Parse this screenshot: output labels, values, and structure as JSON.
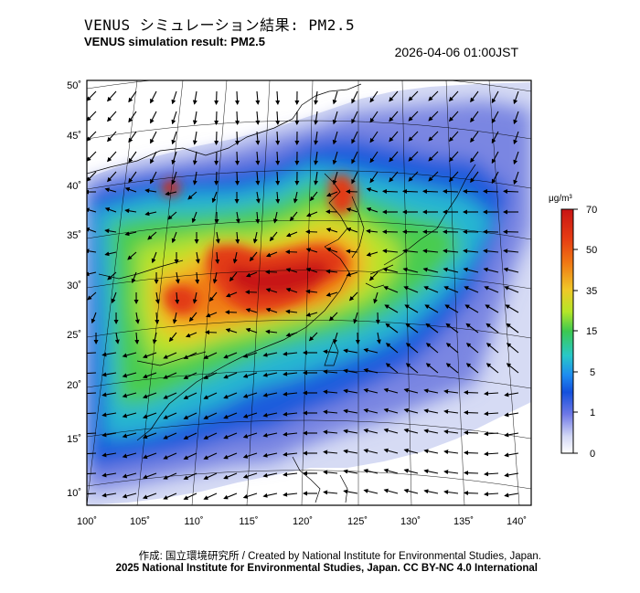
{
  "header": {
    "title_ja": "VENUS シミュレーション結果: PM2.5",
    "title_en": "VENUS simulation result: PM2.5",
    "timestamp": "2026-04-06 01:00JST"
  },
  "map": {
    "lat_ticks": [
      "50˚",
      "45˚",
      "40˚",
      "35˚",
      "30˚",
      "25˚",
      "20˚",
      "15˚",
      "10˚"
    ],
    "lon_ticks": [
      "100˚",
      "105˚",
      "110˚",
      "115˚",
      "120˚",
      "125˚",
      "130˚",
      "135˚",
      "140˚"
    ]
  },
  "colorbar": {
    "unit": "μg/m³",
    "labels": [
      "70",
      "50",
      "35",
      "15",
      "5",
      "1",
      "0"
    ],
    "colors": [
      "#c81414",
      "#e63c14",
      "#f07814",
      "#f0c828",
      "#b4e628",
      "#3cc850",
      "#28c8c8",
      "#1e8cf0",
      "#1450dc",
      "#6e78e6",
      "#d2d7f5",
      "#ffffff"
    ]
  },
  "footer": {
    "credit": "作成: 国立環境研究所 / Created by National Institute for Environmental Studies, Japan.",
    "copyright": "2025 National Institute for Environmental Studies, Japan. CC BY-NC 4.0 International"
  }
}
